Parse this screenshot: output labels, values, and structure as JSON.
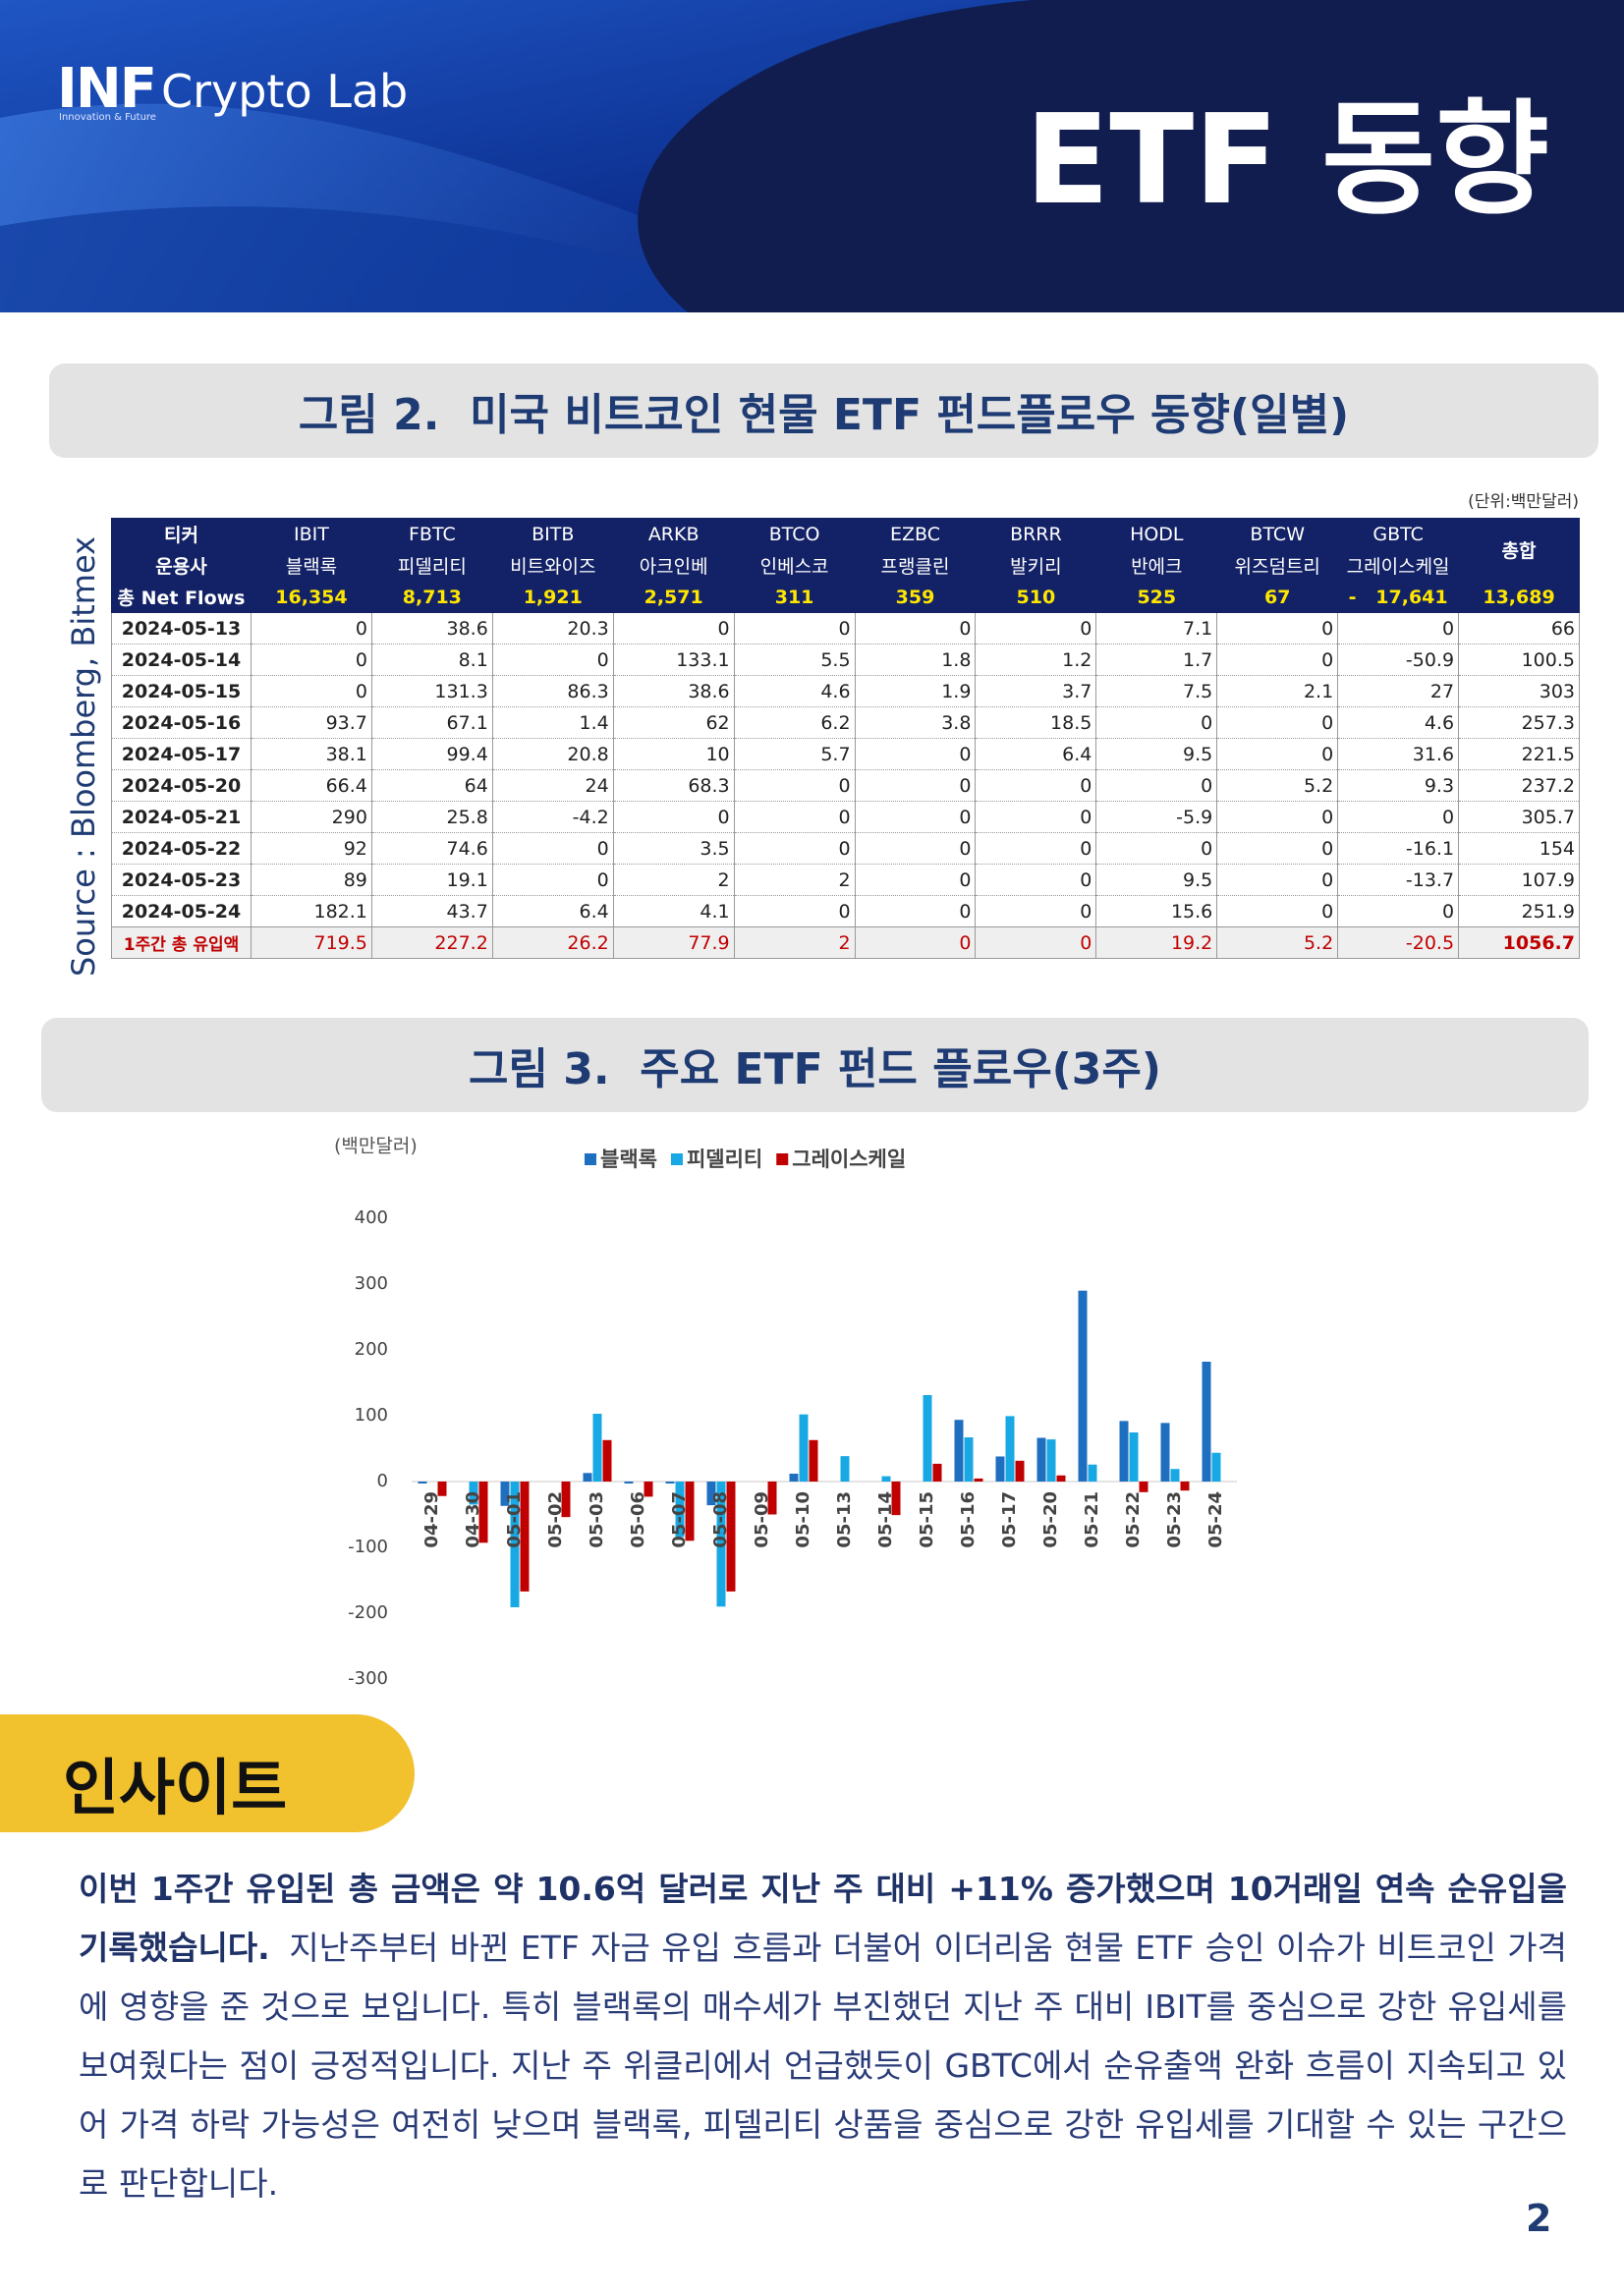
{
  "header": {
    "logo": "INF",
    "logo_sub": "Crypto Lab",
    "tagline": "Innovation & Future",
    "title": "ETF 동향"
  },
  "figure2": {
    "title": "그림 2.  미국 비트코인 현물 ETF 펀드플로우 동향(일별)",
    "unit": "(단위:백만달러)",
    "source": "Source : Bloomberg, Bitmex",
    "table": {
      "ticker_label": "티커",
      "manager_label": "운용사",
      "total_label": "총합",
      "tickers": [
        "IBIT",
        "FBTC",
        "BITB",
        "ARKB",
        "BTCO",
        "EZBC",
        "BRRR",
        "HODL",
        "BTCW",
        "GBTC"
      ],
      "managers": [
        "블랙록",
        "피델리티",
        "비트와이즈",
        "아크인베",
        "인베스코",
        "프랭클린",
        "발키리",
        "반에크",
        "위즈덤트리",
        "그레이스케일"
      ],
      "net_flows_label": "총 Net Flows",
      "net_flows": [
        "16,354",
        "8,713",
        "1,921",
        "2,571",
        "311",
        "359",
        "510",
        "525",
        "67",
        "-   17,641",
        "13,689"
      ],
      "rows": [
        [
          "2024-05-13",
          0,
          38.6,
          20.3,
          0,
          0,
          0,
          0,
          7.1,
          0,
          0,
          66
        ],
        [
          "2024-05-14",
          0,
          8.1,
          0,
          133.1,
          5.5,
          1.8,
          1.2,
          1.7,
          0,
          -50.9,
          100.5
        ],
        [
          "2024-05-15",
          0,
          131.3,
          86.3,
          38.6,
          4.6,
          1.9,
          3.7,
          7.5,
          2.1,
          27,
          303
        ],
        [
          "2024-05-16",
          93.7,
          67.1,
          1.4,
          62,
          6.2,
          3.8,
          18.5,
          0,
          0,
          4.6,
          257.3
        ],
        [
          "2024-05-17",
          38.1,
          99.4,
          20.8,
          10,
          5.7,
          0,
          6.4,
          9.5,
          0,
          31.6,
          221.5
        ],
        [
          "2024-05-20",
          66.4,
          64,
          24,
          68.3,
          0,
          0,
          0,
          0,
          5.2,
          9.3,
          237.2
        ],
        [
          "2024-05-21",
          290,
          25.8,
          -4.2,
          0,
          0,
          0,
          0,
          -5.9,
          0,
          0,
          305.7
        ],
        [
          "2024-05-22",
          92,
          74.6,
          0,
          3.5,
          0,
          0,
          0,
          0,
          0,
          -16.1,
          154
        ],
        [
          "2024-05-23",
          89,
          19.1,
          0,
          2,
          2,
          0,
          0,
          9.5,
          0,
          -13.7,
          107.9
        ],
        [
          "2024-05-24",
          182.1,
          43.7,
          6.4,
          4.1,
          0,
          0,
          0,
          15.6,
          0,
          0,
          251.9
        ]
      ],
      "weekly_total": {
        "label": "1주간 총 유입액",
        "values": [
          719.5,
          227.2,
          26.2,
          77.9,
          2,
          0,
          0,
          19.2,
          5.2,
          -20.5,
          1056.7
        ]
      }
    }
  },
  "figure3": {
    "title": "그림 3.  주요 ETF 펀드 플로우(3주)"
  },
  "chart_data": {
    "type": "bar",
    "y_label": "(백만달러)",
    "categories": [
      "04-29",
      "04-30",
      "05-01",
      "05-02",
      "05-03",
      "05-06",
      "05-07",
      "05-08",
      "05-09",
      "05-10",
      "05-13",
      "05-14",
      "05-15",
      "05-16",
      "05-17",
      "05-20",
      "05-21",
      "05-22",
      "05-23",
      "05-24"
    ],
    "series": [
      {
        "name": "블랙록",
        "color": "#1f6fc0",
        "values": [
          -3,
          0,
          -37,
          0,
          13,
          -3,
          -3,
          -36,
          0,
          12,
          0,
          0,
          0,
          93.7,
          38.1,
          66.4,
          290,
          92,
          89,
          182.1
        ]
      },
      {
        "name": "피델리티",
        "color": "#18a8e4",
        "values": [
          0,
          -35,
          -191,
          0,
          103,
          0,
          -84,
          -190,
          0,
          102,
          38.6,
          8.1,
          131.3,
          67.1,
          99.4,
          64,
          25.8,
          74.6,
          19.1,
          43.7
        ]
      },
      {
        "name": "그레이스케일",
        "color": "#c00000",
        "values": [
          -22,
          -93,
          -167,
          -54,
          63,
          -23,
          -90,
          -167,
          -50,
          63,
          0,
          -50.9,
          27,
          4.6,
          31.6,
          9.3,
          0,
          -16.1,
          -13.7,
          0
        ]
      }
    ],
    "ylim": [
      -300,
      400
    ],
    "yticks": [
      -300,
      -200,
      -100,
      0,
      100,
      200,
      300,
      400
    ],
    "grid": false
  },
  "insight": {
    "heading": "인사이트",
    "bold": "이번 1주간 유입된 총 금액은 약 10.6억 달러로 지난 주 대비 +11% 증가했으며 10거래일 연속 순유입을 기록했습니다.",
    "text": "지난주부터 바뀐 ETF 자금 유입 흐름과 더불어 이더리움 현물 ETF 승인 이슈가 비트코인 가격에 영향을 준 것으로 보입니다. 특히 블랙록의 매수세가 부진했던 지난 주 대비 IBIT를 중심으로 강한 유입세를 보여줬다는 점이 긍정적입니다. 지난 주 위클리에서 언급했듯이 GBTC에서 순유출액 완화 흐름이 지속되고 있어 가격 하락 가능성은 여전히 낮으며 블랙록, 피델리티 상품을 중심으로 강한 유입세를 기대할 수 있는 구간으로 판단합니다."
  },
  "page_number": "2"
}
